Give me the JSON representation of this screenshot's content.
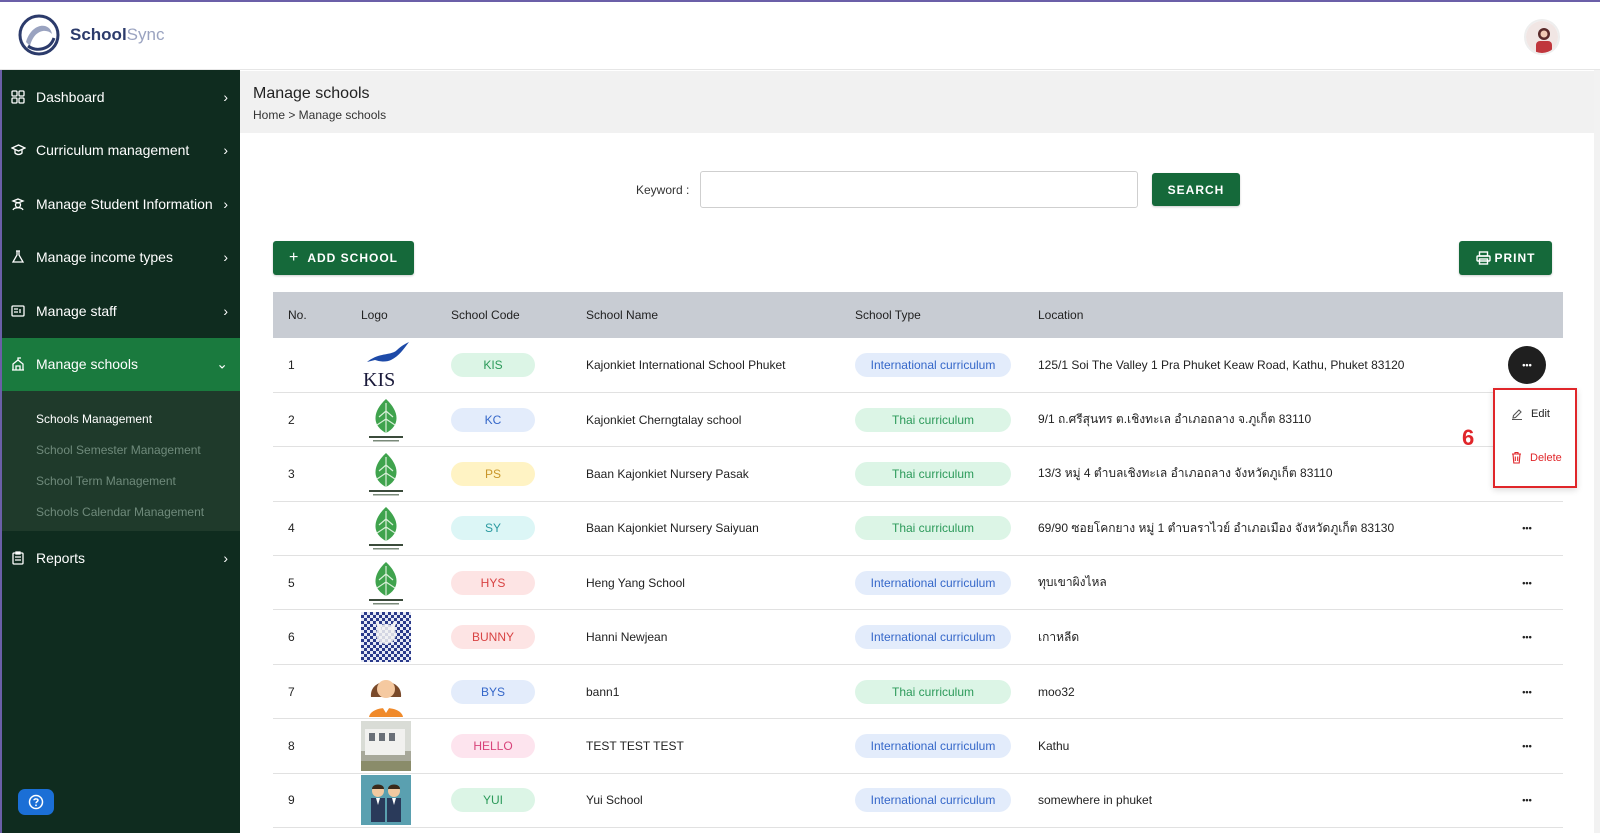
{
  "app": {
    "brand_main": "School",
    "brand_accent": "Sync"
  },
  "colors": {
    "sidebar_bg": "#0f2c1f",
    "sidebar_active": "#1a7a3e",
    "primary_button": "#15693a",
    "danger": "#e0262a"
  },
  "sidebar": {
    "items": [
      {
        "label": "Dashboard",
        "icon": "dashboard-grid-icon"
      },
      {
        "label": "Curriculum management",
        "icon": "graduation-cap-icon"
      },
      {
        "label": "Manage Student Information",
        "icon": "student-icon"
      },
      {
        "label": "Manage income types",
        "icon": "flask-icon"
      },
      {
        "label": "Manage staff",
        "icon": "id-card-icon"
      },
      {
        "label": "Manage schools",
        "icon": "school-building-icon"
      },
      {
        "label": "Reports",
        "icon": "clipboard-icon"
      }
    ],
    "sub_items": [
      {
        "label": "Schools Management"
      },
      {
        "label": "School Semester Management"
      },
      {
        "label": "School Term Management"
      },
      {
        "label": "Schools Calendar Management"
      }
    ]
  },
  "page": {
    "title": "Manage schools",
    "breadcrumb": "Home > Manage schools"
  },
  "search": {
    "label": "Keyword :",
    "value": "",
    "button": "SEARCH"
  },
  "toolbar": {
    "add_label": "ADD SCHOOL",
    "print_label": "PRINT"
  },
  "table": {
    "headers": [
      "No.",
      "Logo",
      "School Code",
      "School Name",
      "School Type",
      "Location"
    ],
    "rows": [
      {
        "no": "1",
        "code": "KIS",
        "name": "Kajonkiet International School Phuket",
        "type": "International curriculum",
        "location": "125/1 Soi The Valley 1 Pra Phuket Keaw Road, Kathu, Phuket 83120",
        "code_bg": "#dcf5e6",
        "code_fg": "#2c9a5a",
        "logo": "kis-logo"
      },
      {
        "no": "2",
        "code": "KC",
        "name": "Kajonkiet Cherngtalay school",
        "type": "Thai curriculum",
        "location": "9/1 ถ.ศรีสุนทร ต.เชิงทะเล อำเภอถลาง จ.ภูเก็ต 83110",
        "code_bg": "#e3ecfb",
        "code_fg": "#3567c9",
        "logo": "leaf-logo"
      },
      {
        "no": "3",
        "code": "PS",
        "name": "Baan Kajonkiet Nursery Pasak",
        "type": "Thai curriculum",
        "location": "13/3 หมู่ 4 ตำบลเชิงทะเล อำเภอถลาง จังหวัดภูเก็ต 83110",
        "code_bg": "#fff3c4",
        "code_fg": "#c9962a",
        "logo": "leaf-logo"
      },
      {
        "no": "4",
        "code": "SY",
        "name": "Baan Kajonkiet Nursery Saiyuan",
        "type": "Thai curriculum",
        "location": "69/90 ซอยโคกยาง หมู่ 1 ตำบลราไวย์ อำเภอเมือง จังหวัดภูเก็ต 83130",
        "code_bg": "#dcf6f6",
        "code_fg": "#2a9aa0",
        "logo": "leaf-logo"
      },
      {
        "no": "5",
        "code": "HYS",
        "name": "Heng Yang School",
        "type": "International curriculum",
        "location": "ทุบเขาผิงไหล",
        "code_bg": "#fde4e4",
        "code_fg": "#d84343",
        "logo": "leaf-logo"
      },
      {
        "no": "6",
        "code": "BUNNY",
        "name": "Hanni Newjean",
        "type": "International curriculum",
        "location": "เกาหลีด",
        "code_bg": "#fde4e4",
        "code_fg": "#d84343",
        "logo": "bunny-photo"
      },
      {
        "no": "7",
        "code": "BYS",
        "name": "bann1",
        "type": "Thai curriculum",
        "location": "moo32",
        "code_bg": "#e3ecfb",
        "code_fg": "#3567c9",
        "logo": "woman-avatar"
      },
      {
        "no": "8",
        "code": "HELLO",
        "name": "TEST TEST TEST",
        "type": "International curriculum",
        "location": "Kathu",
        "code_bg": "#fde4ee",
        "code_fg": "#d8437a",
        "logo": "building-photo"
      },
      {
        "no": "9",
        "code": "YUI",
        "name": "Yui School",
        "type": "International curriculum",
        "location": "somewhere in phuket",
        "code_bg": "#dcf5e6",
        "code_fg": "#2c9a5a",
        "logo": "two-men-avatar"
      }
    ]
  },
  "row_menu": {
    "edit_label": "Edit",
    "delete_label": "Delete"
  },
  "annotation": {
    "step": "6"
  }
}
